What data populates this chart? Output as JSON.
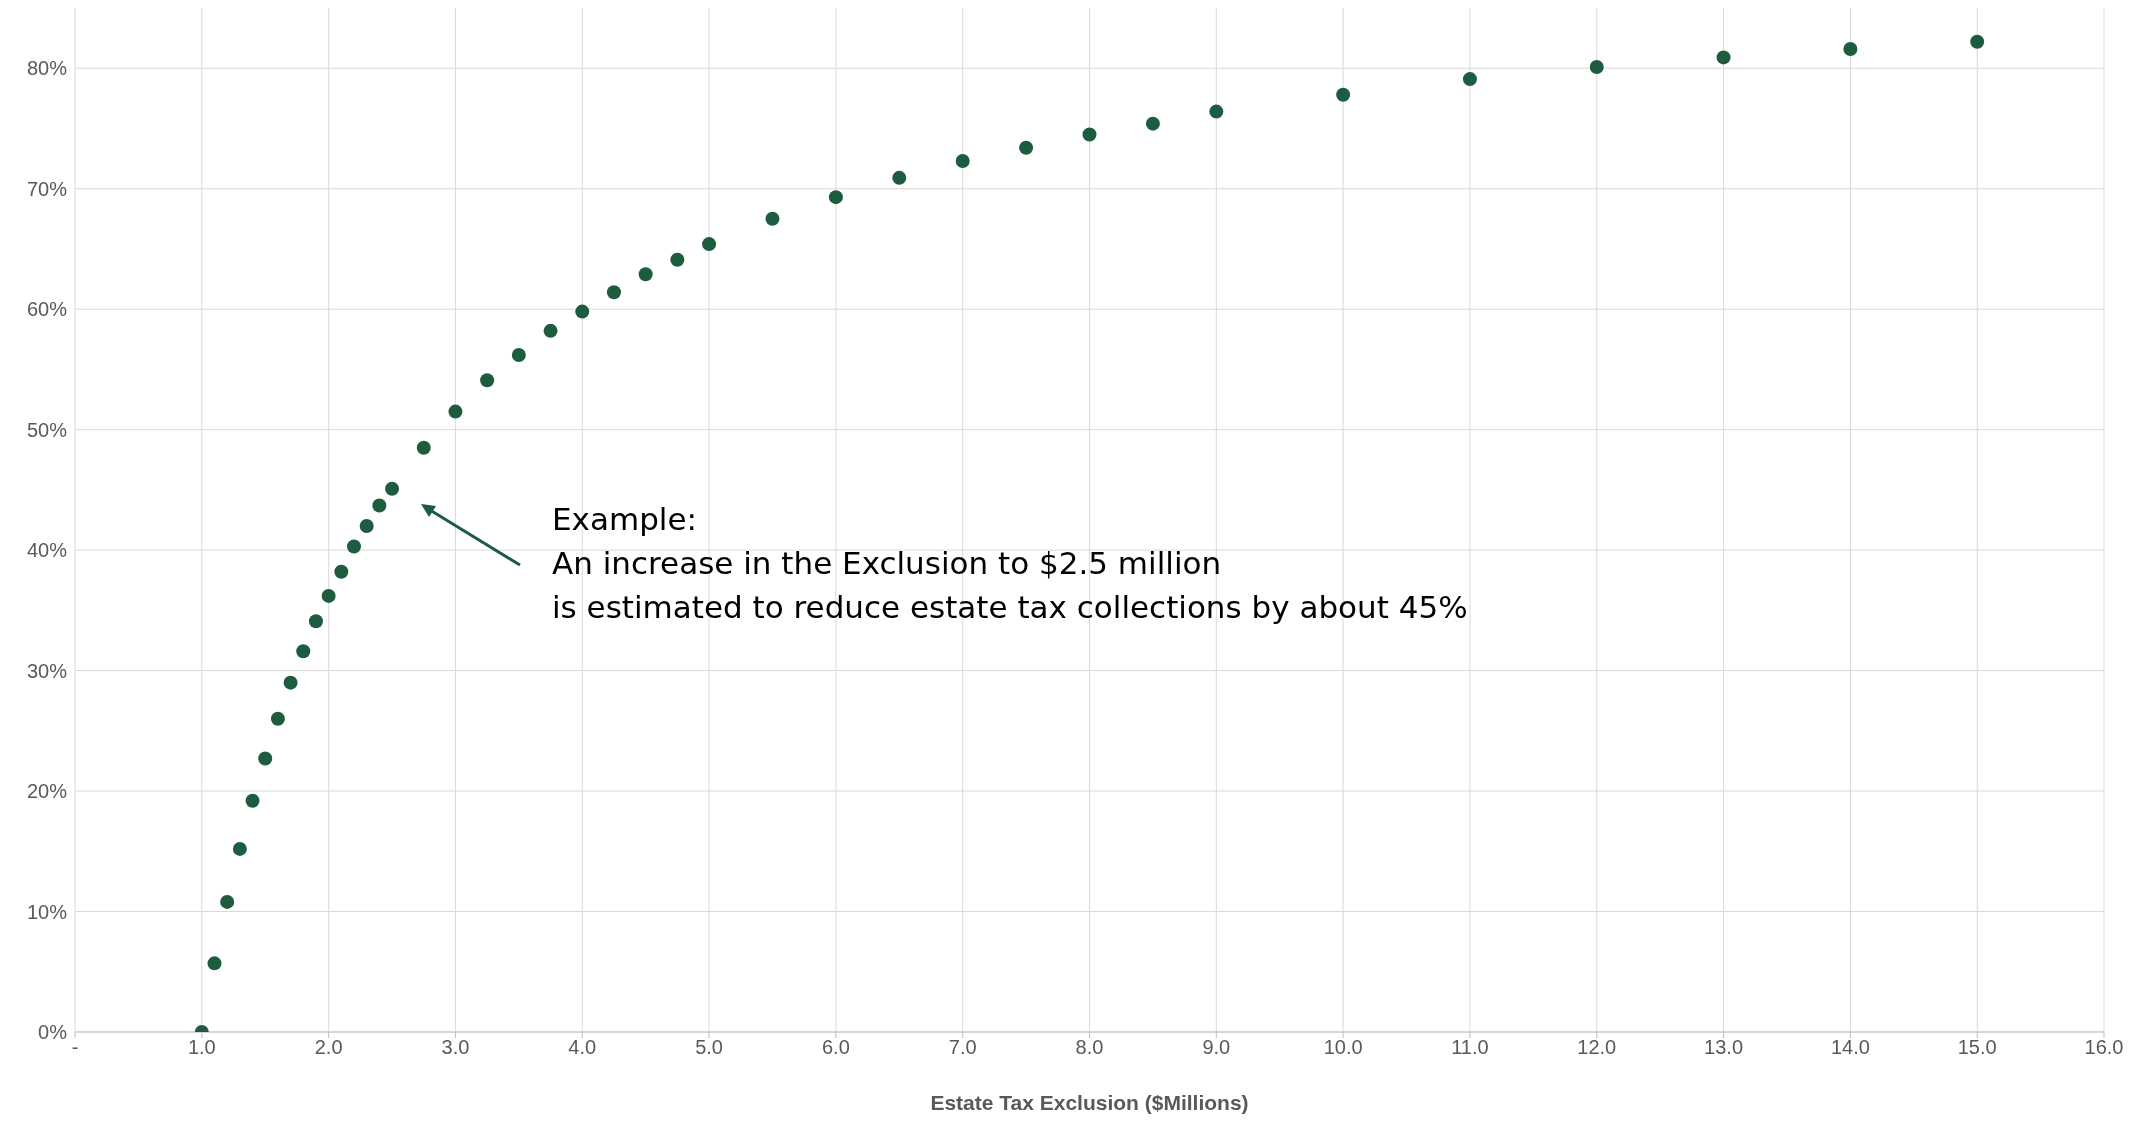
{
  "chart_data": {
    "type": "scatter",
    "xlabel": "Estate Tax Exclusion ($Millions)",
    "x": [
      1.0,
      1.1,
      1.2,
      1.3,
      1.4,
      1.5,
      1.6,
      1.7,
      1.8,
      1.9,
      2.0,
      2.1,
      2.2,
      2.3,
      2.4,
      2.5,
      2.75,
      3.0,
      3.25,
      3.5,
      3.75,
      4.0,
      4.25,
      4.5,
      4.75,
      5.0,
      5.5,
      6.0,
      6.5,
      7.0,
      7.5,
      8.0,
      8.5,
      9.0,
      10.0,
      11.0,
      12.0,
      13.0,
      14.0,
      15.0
    ],
    "series": [
      {
        "color": "#1e5c40",
        "values": [
          0,
          5.7,
          10.8,
          15.2,
          19.2,
          22.7,
          26.0,
          29.0,
          31.6,
          34.1,
          36.2,
          38.2,
          40.3,
          42.0,
          43.7,
          45.1,
          48.5,
          51.5,
          54.1,
          56.2,
          58.2,
          59.8,
          61.4,
          62.9,
          64.1,
          65.4,
          67.5,
          69.3,
          70.9,
          72.3,
          73.4,
          74.5,
          75.4,
          76.4,
          77.8,
          79.1,
          80.1,
          80.9,
          81.6,
          82.2
        ]
      }
    ],
    "xlim": [
      0,
      16
    ],
    "xticks": [
      {
        "value": 0,
        "label": "-"
      },
      {
        "value": 1,
        "label": "1.0"
      },
      {
        "value": 2,
        "label": "2.0"
      },
      {
        "value": 3,
        "label": "3.0"
      },
      {
        "value": 4,
        "label": "4.0"
      },
      {
        "value": 5,
        "label": "5.0"
      },
      {
        "value": 6,
        "label": "6.0"
      },
      {
        "value": 7,
        "label": "7.0"
      },
      {
        "value": 8,
        "label": "8.0"
      },
      {
        "value": 9,
        "label": "9.0"
      },
      {
        "value": 10,
        "label": "10.0"
      },
      {
        "value": 11,
        "label": "11.0"
      },
      {
        "value": 12,
        "label": "12.0"
      },
      {
        "value": 13,
        "label": "13.0"
      },
      {
        "value": 14,
        "label": "14.0"
      },
      {
        "value": 15,
        "label": "15.0"
      },
      {
        "value": 16,
        "label": "16.0"
      }
    ],
    "ylim": [
      0,
      85
    ],
    "yticks": [
      {
        "value": 0,
        "label": "0%"
      },
      {
        "value": 10,
        "label": "10%"
      },
      {
        "value": 20,
        "label": "20%"
      },
      {
        "value": 30,
        "label": "30%"
      },
      {
        "value": 40,
        "label": "40%"
      },
      {
        "value": 50,
        "label": "50%"
      },
      {
        "value": 60,
        "label": "60%"
      },
      {
        "value": 70,
        "label": "70%"
      },
      {
        "value": 80,
        "label": "80%"
      }
    ],
    "grid": true,
    "marker": "circle",
    "annotations": [
      "Example:\nAn increase in the Exclusion to $2.5 million\nis estimated to reduce estate tax collections by about 45%"
    ]
  }
}
